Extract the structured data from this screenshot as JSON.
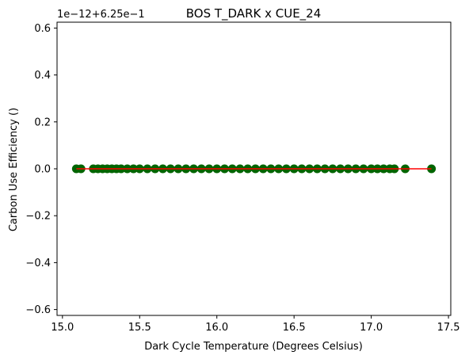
{
  "chart_data": {
    "type": "scatter",
    "title": "BOS T_DARK x CUE_24",
    "xlabel": "Dark Cycle Temperature (Degrees Celsius)",
    "ylabel": "Carbon Use Efficiency ()",
    "y_offset_label": "1e−12+6.25e−1",
    "xlim": [
      14.965,
      17.515
    ],
    "ylim": [
      -0.625,
      0.625
    ],
    "x_ticks": [
      15.0,
      15.5,
      16.0,
      16.5,
      17.0,
      17.5
    ],
    "x_tick_labels": [
      "15.0",
      "15.5",
      "16.0",
      "16.5",
      "17.0",
      "17.5"
    ],
    "y_ticks": [
      -0.6,
      -0.4,
      -0.2,
      0.0,
      0.2,
      0.4,
      0.6
    ],
    "y_tick_labels": [
      "−0.6",
      "−0.4",
      "−0.2",
      "0.0",
      "0.2",
      "0.4",
      "0.6"
    ],
    "grid": false,
    "series": [
      {
        "kind": "points",
        "color": "#006400",
        "x": [
          15.09,
          15.12,
          15.2,
          15.23,
          15.26,
          15.29,
          15.32,
          15.35,
          15.38,
          15.42,
          15.46,
          15.5,
          15.55,
          15.6,
          15.65,
          15.7,
          15.75,
          15.8,
          15.85,
          15.9,
          15.95,
          16.0,
          16.05,
          16.1,
          16.15,
          16.2,
          16.25,
          16.3,
          16.35,
          16.4,
          16.45,
          16.5,
          16.55,
          16.6,
          16.65,
          16.7,
          16.75,
          16.8,
          16.85,
          16.9,
          16.95,
          17.0,
          17.04,
          17.08,
          17.12,
          17.15,
          17.22,
          17.39
        ],
        "y": [
          0,
          0,
          0,
          0,
          0,
          0,
          0,
          0,
          0,
          0,
          0,
          0,
          0,
          0,
          0,
          0,
          0,
          0,
          0,
          0,
          0,
          0,
          0,
          0,
          0,
          0,
          0,
          0,
          0,
          0,
          0,
          0,
          0,
          0,
          0,
          0,
          0,
          0,
          0,
          0,
          0,
          0,
          0,
          0,
          0,
          0,
          0,
          0
        ]
      },
      {
        "kind": "fit-line",
        "color": "#ff0000",
        "x": [
          15.09,
          17.39
        ],
        "y": [
          0,
          0
        ]
      }
    ]
  }
}
